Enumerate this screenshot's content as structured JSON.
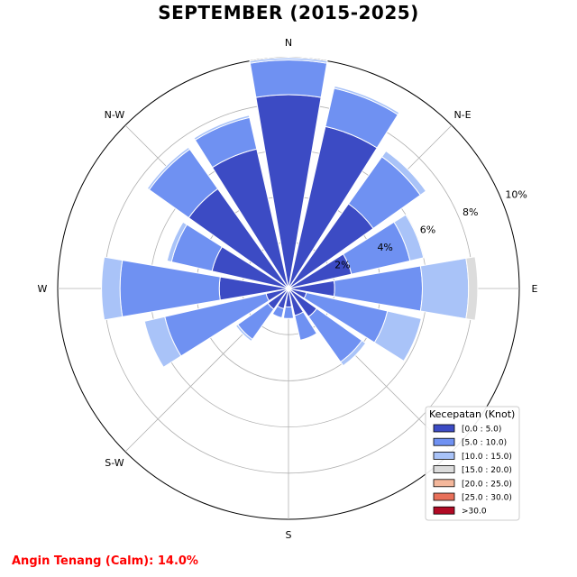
{
  "chart_data": {
    "type": "windrose",
    "title": "SEPTEMBER (2015-2025)",
    "directions": [
      "N",
      "NNE",
      "NE",
      "ENE",
      "E",
      "ESE",
      "SE",
      "SSE",
      "S",
      "SSW",
      "SW",
      "WSW",
      "W",
      "WNW",
      "NW",
      "NNW"
    ],
    "direction_labels": [
      {
        "dir": "N",
        "text": "N"
      },
      {
        "dir": "NE",
        "text": "N-E"
      },
      {
        "dir": "E",
        "text": "E"
      },
      {
        "dir": "S",
        "text": "S"
      },
      {
        "dir": "SW",
        "text": "S-W"
      },
      {
        "dir": "W",
        "text": "W"
      },
      {
        "dir": "NW",
        "text": "N-W"
      }
    ],
    "radial_ticks": [
      {
        "value": 2,
        "label": "2%"
      },
      {
        "value": 4,
        "label": "4%"
      },
      {
        "value": 6,
        "label": "6%"
      },
      {
        "value": 8,
        "label": "8%"
      },
      {
        "value": 10,
        "label": "10%"
      }
    ],
    "rmax": 10,
    "series": [
      {
        "label": "[0.0 : 5.0)",
        "color": "#3c4bc4",
        "values": [
          8.4,
          7.2,
          4.5,
          2.8,
          2.0,
          0.8,
          1.5,
          1.2,
          0.8,
          0.9,
          1.1,
          1.0,
          3.0,
          3.4,
          5.3,
          6.2
        ]
      },
      {
        "label": "[5.0 : 10.0)",
        "color": "#6f91f2",
        "values": [
          1.5,
          1.7,
          2.5,
          2.6,
          3.8,
          3.6,
          2.4,
          1.1,
          0.5,
          0.4,
          1.6,
          4.5,
          4.3,
          1.8,
          2.1,
          1.4
        ]
      },
      {
        "label": "[10.0 : 15.0)",
        "color": "#a9c3f8",
        "values": [
          0.1,
          0.1,
          0.3,
          0.6,
          2.0,
          1.5,
          0.2,
          0.0,
          0.0,
          0.0,
          0.1,
          0.9,
          0.8,
          0.2,
          0.1,
          0.1
        ]
      },
      {
        "label": "[15.0 : 20.0)",
        "color": "#dcdcdc",
        "values": [
          0,
          0,
          0,
          0,
          0.4,
          0,
          0,
          0,
          0,
          0,
          0,
          0,
          0,
          0,
          0,
          0
        ]
      },
      {
        "label": "[20.0 : 25.0)",
        "color": "#f4b79b",
        "values": [
          0,
          0,
          0,
          0,
          0,
          0,
          0,
          0,
          0,
          0,
          0,
          0,
          0,
          0,
          0,
          0
        ]
      },
      {
        "label": "[25.0 : 30.0)",
        "color": "#e8705a",
        "values": [
          0,
          0,
          0,
          0,
          0,
          0,
          0,
          0,
          0,
          0,
          0,
          0,
          0,
          0,
          0,
          0
        ]
      },
      {
        "label": ">30.0",
        "color": "#b10a25",
        "values": [
          0,
          0,
          0,
          0,
          0,
          0,
          0,
          0,
          0,
          0,
          0,
          0,
          0,
          0,
          0,
          0
        ]
      }
    ],
    "legend": {
      "title": "Kecepatan (Knot)",
      "position": "lower-right"
    },
    "grid": true
  },
  "calm_text": "Angin Tenang (Calm): 14.0%"
}
